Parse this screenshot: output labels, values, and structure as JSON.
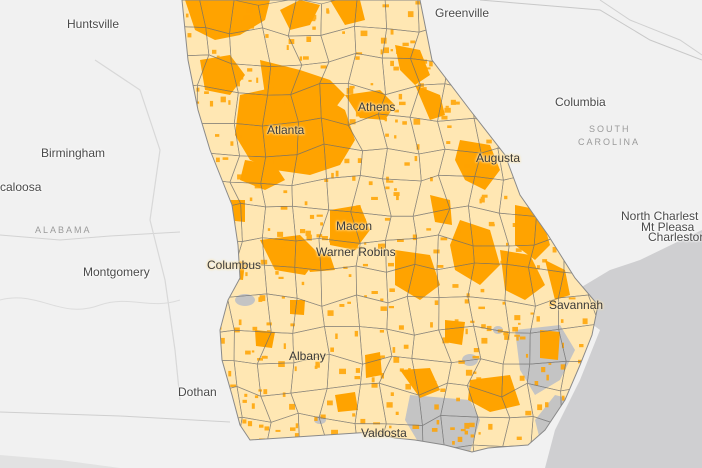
{
  "map": {
    "colors": {
      "land": "#f3f3f3",
      "water": "#cfcfd1",
      "state_fill": "#ffe7b3",
      "highlight": "#ffa300",
      "no_data": "#c4c4c4",
      "county_line": "#6e6e6e"
    },
    "cities_inside": {
      "atlanta": "Atlanta",
      "athens": "Athens",
      "augusta": "Augusta",
      "macon": "Macon",
      "warner_robins": "Warner Robins",
      "columbus": "Columbus",
      "albany": "Albany",
      "valdosta": "Valdosta",
      "savannah": "Savannah"
    },
    "cities_outside": {
      "huntsville": "Huntsville",
      "greenville": "Greenville",
      "birmingham": "Birmingham",
      "tuscaloosa": "caloosa",
      "montgomery": "Montgomery",
      "dothan": "Dothan",
      "columbia": "Columbia",
      "north_charleston": "North Charlest",
      "mt_pleasant": "Mt Pleasa",
      "charleston": "Charlestor"
    },
    "states": {
      "alabama": "ALABAMA",
      "south": "SOUTH",
      "carolina": "CAROLINA"
    }
  }
}
